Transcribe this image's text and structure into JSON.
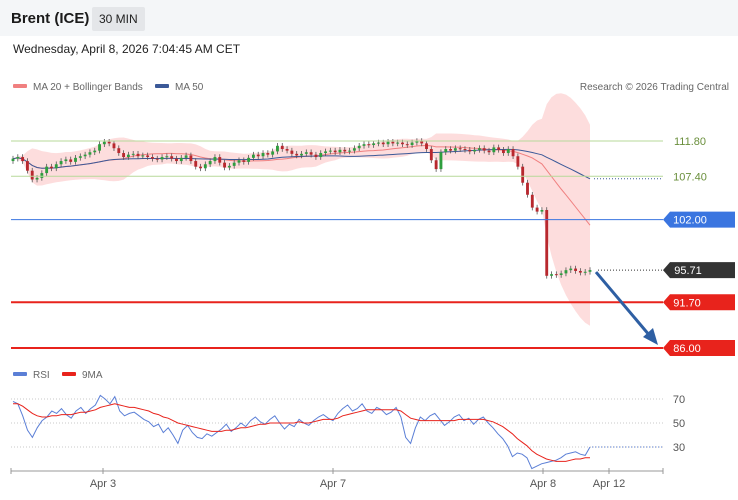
{
  "header": {
    "title": "Brent (ICE)",
    "timeframe": "30 MIN"
  },
  "datetime": "Wednesday, April 8, 2026 7:04:45 AM CET",
  "copyright": "Research © 2026 Trading Central",
  "colors": {
    "ma20": "#f08080",
    "ma50": "#3b5998",
    "bollinger": "#fdd5d5",
    "resistance": "#b7d99a",
    "pivot": "#3a75e0",
    "support": "#e8231c",
    "last": "#333333",
    "candle_up": "#2e9e3e",
    "candle_down": "#b8282e",
    "rsi": "#5b7fd6",
    "rsi_ma": "#e8231c",
    "arrow": "#2e5fa3"
  },
  "chart_data": [
    {
      "type": "candlestick",
      "instrument": "Brent (ICE)",
      "timeframe": "30 MIN",
      "legend": [
        {
          "name": "MA 20 + Bollinger Bands",
          "color": "#f08080"
        },
        {
          "name": "MA 50",
          "color": "#3b5998"
        }
      ],
      "x_ticks": [
        "Apr 3",
        "Apr 7",
        "Apr 8",
        "Apr 12"
      ],
      "levels": [
        {
          "label": "111.80",
          "value": 111.8,
          "kind": "resistance"
        },
        {
          "label": "107.40",
          "value": 107.4,
          "kind": "resistance"
        },
        {
          "label": "102.00",
          "value": 102.0,
          "kind": "pivot"
        },
        {
          "label": "95.71",
          "value": 95.71,
          "kind": "last"
        },
        {
          "label": "91.70",
          "value": 91.7,
          "kind": "support"
        },
        {
          "label": "86.00",
          "value": 86.0,
          "kind": "support"
        }
      ],
      "y_range": [
        86,
        111.8
      ],
      "forecast": {
        "direction": "down",
        "from": 95.71,
        "to": 86.0
      },
      "close_series": [
        109.6,
        109.8,
        109.3,
        108.1,
        107.0,
        107.2,
        107.8,
        108.6,
        108.4,
        108.9,
        109.3,
        109.5,
        109.2,
        109.7,
        109.9,
        110.1,
        110.4,
        110.6,
        111.4,
        111.7,
        111.5,
        110.9,
        110.3,
        109.8,
        110.1,
        110.2,
        109.9,
        110.0,
        109.8,
        109.6,
        109.5,
        109.8,
        109.9,
        109.6,
        109.3,
        109.7,
        110.0,
        109.3,
        108.6,
        108.4,
        108.9,
        109.3,
        109.8,
        109.1,
        108.5,
        108.7,
        109.1,
        109.4,
        109.2,
        109.7,
        110.1,
        109.9,
        110.3,
        110.1,
        110.5,
        111.2,
        110.8,
        110.6,
        110.2,
        110.0,
        110.2,
        110.4,
        110.1,
        109.8,
        110.3,
        110.5,
        110.6,
        110.4,
        110.7,
        110.5,
        110.6,
        110.9,
        111.2,
        111.4,
        111.3,
        111.5,
        111.6,
        111.4,
        111.7,
        111.5,
        111.6,
        111.4,
        111.3,
        111.6,
        111.8,
        111.5,
        110.8,
        109.4,
        108.3,
        110.4,
        110.8,
        110.6,
        110.9,
        110.8,
        110.7,
        110.5,
        110.7,
        110.9,
        110.6,
        110.4,
        111.0,
        110.7,
        110.3,
        110.8,
        109.9,
        108.6,
        106.6,
        105.1,
        103.5,
        103.0,
        103.2,
        95.0,
        95.2,
        95.1,
        95.3,
        95.7,
        95.9,
        95.6,
        95.4,
        95.5,
        95.71
      ]
    },
    {
      "type": "line",
      "name": "RSI",
      "legend": [
        {
          "name": "RSI",
          "color": "#5b7fd6"
        },
        {
          "name": "9MA",
          "color": "#e8231c"
        }
      ],
      "y_ticks": [
        70,
        50,
        30
      ],
      "y_range": [
        0,
        100
      ],
      "rsi": [
        68,
        66,
        56,
        44,
        38,
        46,
        52,
        55,
        60,
        58,
        62,
        57,
        54,
        60,
        63,
        58,
        62,
        65,
        73,
        70,
        66,
        72,
        60,
        56,
        58,
        59,
        56,
        53,
        51,
        47,
        49,
        42,
        46,
        40,
        33,
        44,
        48,
        42,
        38,
        37,
        41,
        39,
        42,
        45,
        49,
        43,
        46,
        50,
        47,
        52,
        55,
        51,
        49,
        53,
        56,
        50,
        45,
        49,
        47,
        53,
        50,
        48,
        52,
        55,
        57,
        54,
        52,
        58,
        62,
        65,
        60,
        62,
        66,
        60,
        58,
        63,
        61,
        57,
        59,
        63,
        55,
        38,
        33,
        46,
        55,
        52,
        56,
        58,
        53,
        48,
        51,
        55,
        57,
        52,
        54,
        49,
        53,
        55,
        50,
        46,
        41,
        37,
        31,
        22,
        25,
        24,
        21,
        12,
        14,
        16,
        17,
        18,
        19,
        21,
        24,
        25,
        26,
        24,
        23,
        30
      ],
      "ma9": [
        66,
        66,
        64,
        61,
        58,
        56,
        55,
        55,
        56,
        56,
        57,
        57,
        57,
        58,
        59,
        59,
        60,
        61,
        63,
        64,
        65,
        66,
        65,
        64,
        63,
        63,
        62,
        61,
        60,
        58,
        57,
        55,
        54,
        52,
        50,
        49,
        48,
        47,
        46,
        45,
        44,
        43,
        43,
        43,
        44,
        44,
        45,
        46,
        46,
        47,
        48,
        49,
        49,
        50,
        50,
        50,
        50,
        50,
        50,
        51,
        50,
        50,
        51,
        52,
        53,
        53,
        53,
        54,
        56,
        57,
        58,
        59,
        60,
        61,
        61,
        61,
        61,
        61,
        61,
        61,
        60,
        57,
        54,
        53,
        52,
        52,
        52,
        52,
        52,
        52,
        52,
        52,
        53,
        53,
        53,
        53,
        53,
        53,
        52,
        51,
        49,
        47,
        44,
        41,
        37,
        34,
        31,
        27,
        24,
        22,
        20,
        19,
        18,
        18,
        18,
        19,
        20,
        20,
        21,
        21
      ]
    }
  ]
}
